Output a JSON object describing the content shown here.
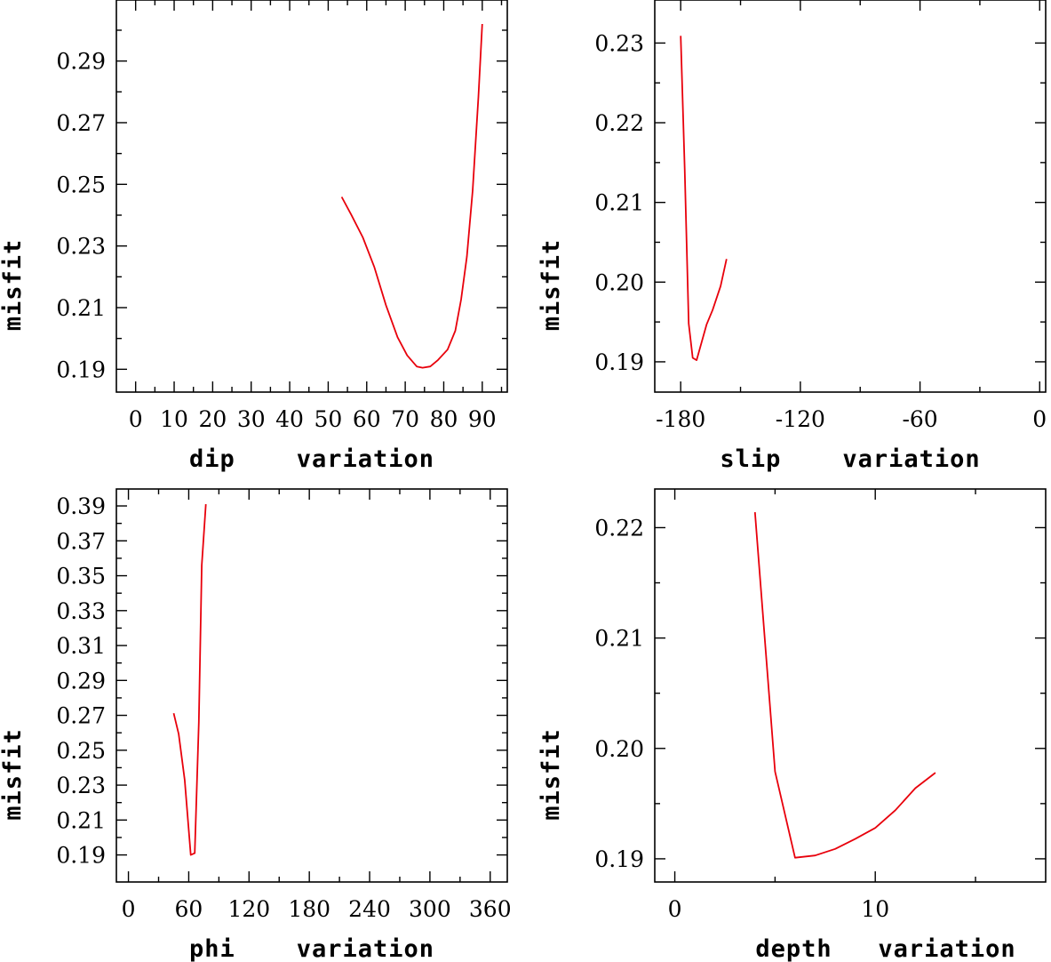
{
  "chart_data": [
    {
      "type": "line",
      "xlabel": "dip    variation",
      "ylabel": "misfit",
      "xlim": [
        -5,
        96.5
      ],
      "ylim": [
        0.1826,
        0.3098
      ],
      "xticks_labeled": [
        0,
        10,
        20,
        30,
        40,
        50,
        60,
        70,
        80,
        90
      ],
      "xticks_minor": [
        5,
        15,
        25,
        35,
        45,
        55,
        65,
        75,
        85,
        95
      ],
      "yticks_labeled": [
        "0.19",
        "0.21",
        "0.23",
        "0.25",
        "0.27",
        "0.29"
      ],
      "yticks_minor": [
        0.2,
        0.22,
        0.24,
        0.26,
        0.28,
        0.3
      ],
      "color": "#e8000b",
      "series": [
        {
          "x": [
            53.5,
            56,
            59,
            62,
            65,
            68,
            70.5,
            73,
            74.5,
            76.5,
            78.5,
            81,
            83,
            84.5,
            86,
            87.5,
            89,
            90
          ],
          "y": [
            0.2459,
            0.2401,
            0.2328,
            0.2231,
            0.2108,
            0.2004,
            0.1945,
            0.1909,
            0.1905,
            0.1909,
            0.193,
            0.1964,
            0.2025,
            0.2126,
            0.2265,
            0.2479,
            0.2784,
            0.302
          ]
        }
      ]
    },
    {
      "type": "line",
      "xlabel": "slip    variation",
      "ylabel": "misfit",
      "xlim": [
        -193,
        3
      ],
      "ylim": [
        0.1862,
        0.2354
      ],
      "xticks_labeled": [
        -180,
        -120,
        -60,
        0
      ],
      "xticks_minor": [
        -150,
        -90,
        -30
      ],
      "yticks_labeled": [
        "0.19",
        "0.20",
        "0.21",
        "0.22",
        "0.23"
      ],
      "yticks_minor": [
        0.195,
        0.205,
        0.215,
        0.225
      ],
      "color": "#e8000b",
      "series": [
        {
          "x": [
            -180,
            -178,
            -176,
            -174,
            -172,
            -170,
            -167,
            -164,
            -160,
            -157
          ],
          "y": [
            0.2309,
            0.2142,
            0.1948,
            0.1905,
            0.1902,
            0.192,
            0.1947,
            0.1965,
            0.1995,
            0.2029
          ]
        }
      ]
    },
    {
      "type": "line",
      "xlabel": "phi    variation",
      "ylabel": "misfit",
      "xlim": [
        -12,
        377
      ],
      "ylim": [
        0.1745,
        0.3997
      ],
      "xticks_labeled": [
        0,
        60,
        120,
        180,
        240,
        300,
        360
      ],
      "xticks_minor": [
        30,
        90,
        150,
        210,
        270,
        330
      ],
      "yticks_labeled": [
        "0.19",
        "0.21",
        "0.23",
        "0.25",
        "0.27",
        "0.29",
        "0.31",
        "0.33",
        "0.35",
        "0.37",
        "0.39"
      ],
      "yticks_minor": [
        0.2,
        0.22,
        0.24,
        0.26,
        0.28,
        0.3,
        0.32,
        0.34,
        0.36,
        0.38
      ],
      "color": "#e8000b",
      "series": [
        {
          "x": [
            45,
            50,
            56,
            62,
            66,
            70,
            73,
            77
          ],
          "y": [
            0.2712,
            0.2594,
            0.233,
            0.19,
            0.191,
            0.266,
            0.356,
            0.391
          ]
        }
      ]
    },
    {
      "type": "line",
      "xlabel": "depth   variation",
      "ylabel": "misfit",
      "xlim": [
        -1,
        18.5
      ],
      "ylim": [
        0.1879,
        0.2235
      ],
      "xticks_labeled": [
        0,
        10
      ],
      "xticks_minor": [
        5,
        15
      ],
      "yticks_labeled": [
        "0.19",
        "0.20",
        "0.21",
        "0.22"
      ],
      "yticks_minor": [
        0.195,
        0.205,
        0.215
      ],
      "color": "#e8000b",
      "series": [
        {
          "x": [
            4,
            5,
            6,
            7,
            8,
            9,
            10,
            11,
            12,
            13
          ],
          "y": [
            0.2214,
            0.1979,
            0.1901,
            0.1903,
            0.1909,
            0.1918,
            0.1928,
            0.1944,
            0.1964,
            0.1978
          ]
        }
      ]
    }
  ]
}
